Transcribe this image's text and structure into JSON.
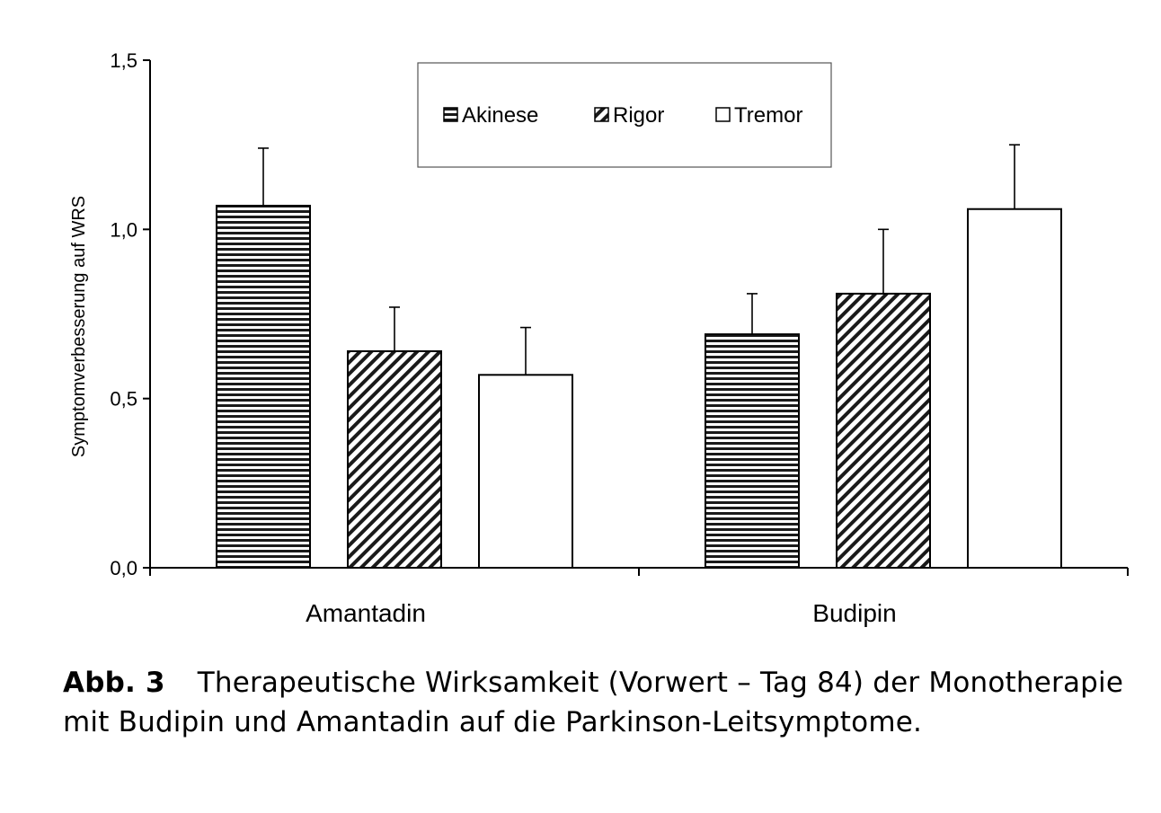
{
  "chart_data": {
    "type": "bar",
    "ylabel": "Symptomverbesserung auf WRS",
    "ylim": [
      0,
      1.5
    ],
    "yticks": [
      "0,0",
      "0,5",
      "1,0",
      "1,5"
    ],
    "grid": false,
    "legend_position": "top-center",
    "categories": [
      "Amantadin",
      "Budipin"
    ],
    "series": [
      {
        "name": "Akinese",
        "pattern": "horizontal-stripes",
        "values": [
          1.07,
          0.69
        ],
        "errors": [
          0.17,
          0.12
        ]
      },
      {
        "name": "Rigor",
        "pattern": "diagonal-stripes",
        "values": [
          0.64,
          0.81
        ],
        "errors": [
          0.13,
          0.19
        ]
      },
      {
        "name": "Tremor",
        "pattern": "white",
        "values": [
          0.57,
          1.06
        ],
        "errors": [
          0.14,
          0.19
        ]
      }
    ]
  },
  "caption": {
    "label": "Abb. 3",
    "text": "Therapeutische Wirksamkeit (Vorwert – Tag 84) der Monotherapie mit Budipin und Amantadin auf die Parkinson-Leitsymptome."
  }
}
